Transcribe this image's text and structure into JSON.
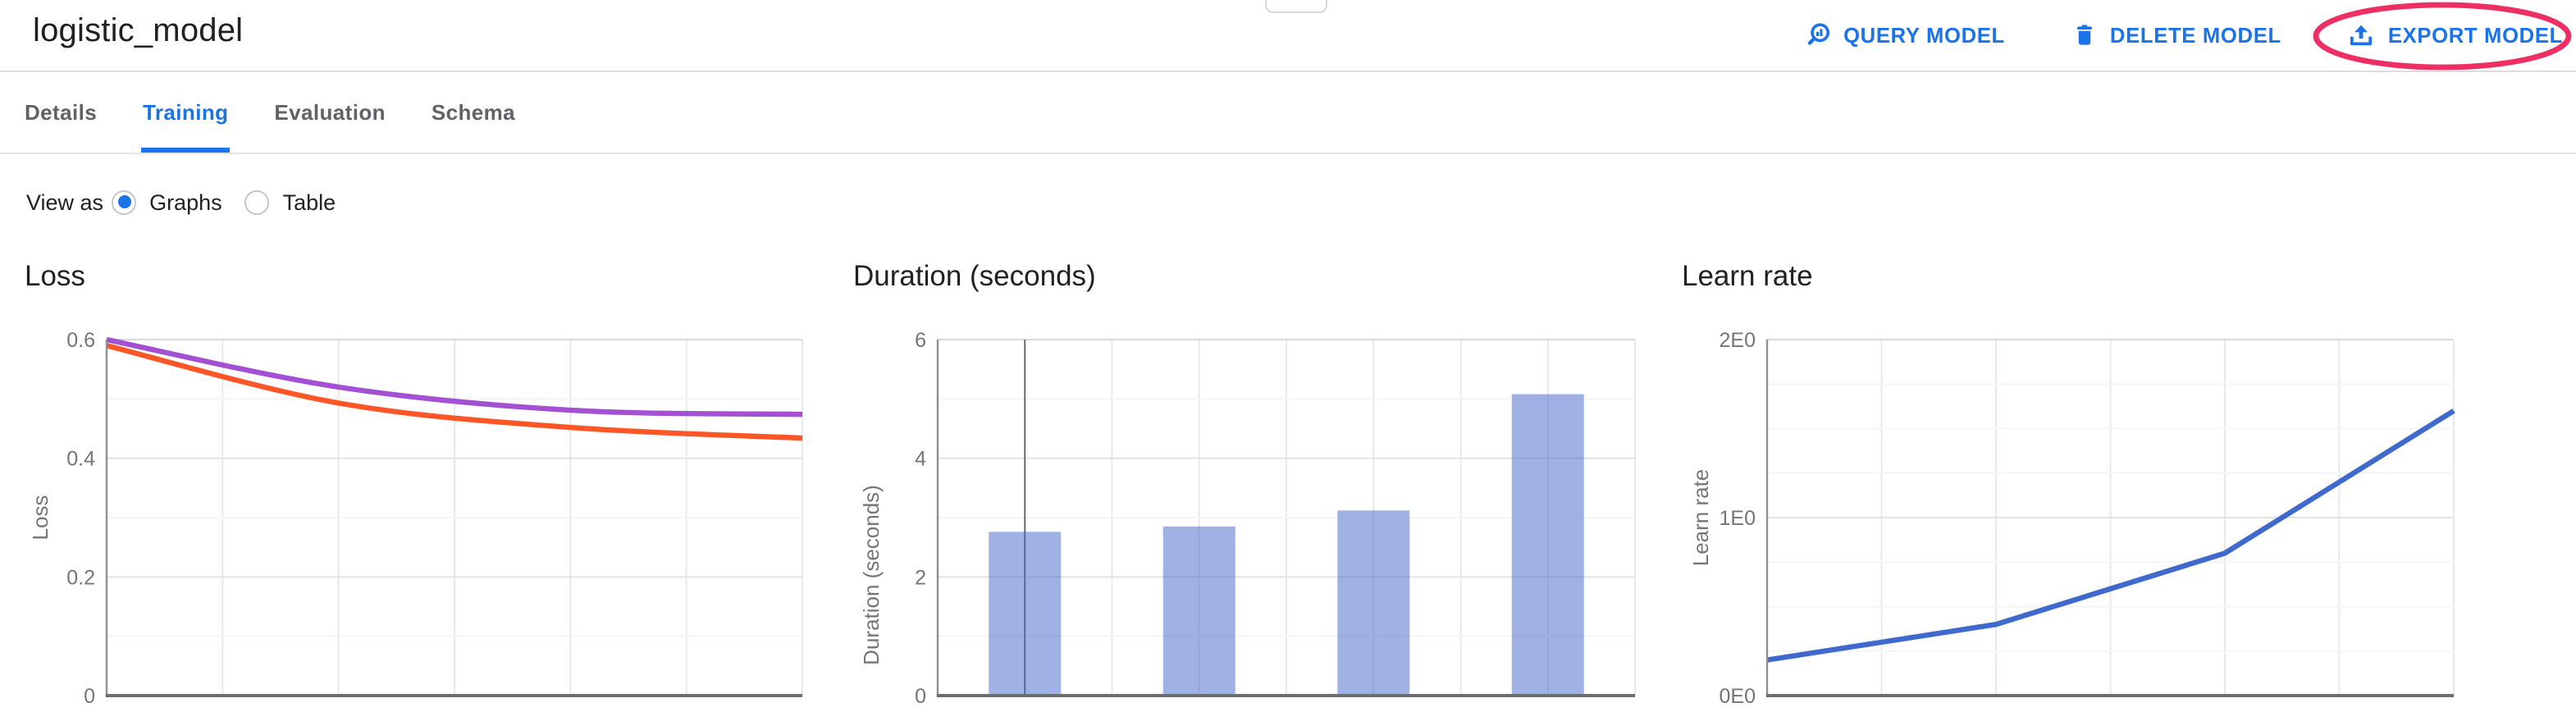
{
  "header": {
    "title": "logistic_model",
    "actions": [
      {
        "label": "QUERY MODEL",
        "icon": "query-magnifier-icon"
      },
      {
        "label": "DELETE MODEL",
        "icon": "trash-icon"
      },
      {
        "label": "EXPORT MODEL",
        "icon": "upload-icon"
      }
    ],
    "annotation": {
      "shape": "ellipse",
      "around": "EXPORT MODEL",
      "color": "#ee2f63"
    }
  },
  "tabs": [
    {
      "label": "Details",
      "active": false
    },
    {
      "label": "Training",
      "active": true
    },
    {
      "label": "Evaluation",
      "active": false
    },
    {
      "label": "Schema",
      "active": false
    }
  ],
  "view_as": {
    "label": "View as",
    "options": [
      {
        "label": "Graphs",
        "selected": true
      },
      {
        "label": "Table",
        "selected": false
      }
    ]
  },
  "colors": {
    "accent_blue": "#1a73e8",
    "annotation_pink": "#ee2f63",
    "loss_purple": "#a350d2",
    "loss_orange": "#fe5627",
    "learn_rate_blue": "#3f69cd",
    "duration_bar_blue": "#4264c8",
    "grid_major": "#e3e3e3",
    "grid_minor": "#f5f5f5",
    "grid_vertical": "#e9e9e9",
    "axis_bottom": "#6e6e6e",
    "axis_left": "#909090",
    "tick_text": "#757575",
    "marker_line": "#6d6d6d"
  },
  "chart_data": [
    {
      "type": "line",
      "title": "Loss",
      "ylabel": "Loss",
      "ylim": [
        0,
        0.6
      ],
      "ytick_labels": [
        "0",
        "0.2",
        "0.4",
        "0.6"
      ],
      "grid": true,
      "legend": "none",
      "smooth": true,
      "series": [
        {
          "name": "loss-series-purple",
          "color": "#a350d2",
          "values": [
            0.6,
            0.52,
            0.481,
            0.474
          ]
        },
        {
          "name": "loss-series-orange",
          "color": "#fe5627",
          "values": [
            0.59,
            0.493,
            0.452,
            0.434
          ]
        }
      ]
    },
    {
      "type": "bar",
      "title": "Duration (seconds)",
      "ylabel": "Duration (seconds)",
      "ylim": [
        0,
        6
      ],
      "ytick_labels": [
        "0",
        "2",
        "4",
        "6"
      ],
      "grid": true,
      "legend": "none",
      "values": [
        2.76,
        2.85,
        3.12,
        5.08
      ],
      "bar_color": "#4264c8",
      "bar_opacity": 0.5,
      "marker_line_index": 0
    },
    {
      "type": "line",
      "title": "Learn rate",
      "ylabel": "Learn rate",
      "ylim": [
        0,
        2
      ],
      "ytick_labels": [
        "0E0",
        "1E0",
        "2E0"
      ],
      "grid": true,
      "legend": "none",
      "smooth": false,
      "series": [
        {
          "name": "learn-rate-line",
          "color": "#3f69cd",
          "values": [
            0.2,
            0.4,
            0.8,
            1.6
          ]
        }
      ]
    }
  ]
}
